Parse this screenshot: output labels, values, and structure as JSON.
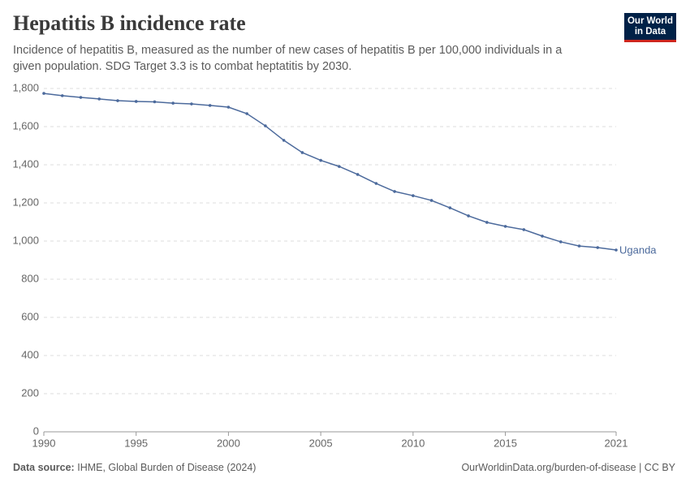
{
  "chart_data": {
    "type": "line",
    "title": "Hepatitis B incidence rate",
    "subtitle": "Incidence of hepatitis B, measured as the number of new cases of hepatitis B per 100,000 individuals in a given population. SDG Target 3.3 is to combat heptatitis by 2030.",
    "x": [
      1990,
      1991,
      1992,
      1993,
      1994,
      1995,
      1996,
      1997,
      1998,
      1999,
      2000,
      2001,
      2002,
      2003,
      2004,
      2005,
      2006,
      2007,
      2008,
      2009,
      2010,
      2011,
      2012,
      2013,
      2014,
      2015,
      2016,
      2017,
      2018,
      2019,
      2020,
      2021
    ],
    "series": [
      {
        "name": "Uganda",
        "color": "#4c6a9c",
        "values": [
          1774,
          1762,
          1753,
          1745,
          1736,
          1732,
          1730,
          1723,
          1719,
          1711,
          1702,
          1668,
          1604,
          1528,
          1464,
          1423,
          1391,
          1349,
          1302,
          1260,
          1238,
          1213,
          1174,
          1132,
          1098,
          1077,
          1060,
          1026,
          996,
          974,
          966,
          953
        ]
      }
    ],
    "xlim": [
      1990,
      2021
    ],
    "xticks": [
      1990,
      1995,
      2000,
      2005,
      2010,
      2015,
      2021
    ],
    "ylim": [
      0,
      1800
    ],
    "yticks": [
      0,
      200,
      400,
      600,
      800,
      {
        "value": 1000,
        "label": "1,000"
      },
      {
        "value": 1200,
        "label": "1,200"
      },
      {
        "value": 1400,
        "label": "1,400"
      },
      {
        "value": 1600,
        "label": "1,600"
      },
      {
        "value": 1800,
        "label": "1,800"
      }
    ],
    "grid": true
  },
  "logo": {
    "line1": "Our World",
    "line2": "in Data"
  },
  "footer": {
    "source_label": "Data source:",
    "source": "IHME, Global Burden of Disease (2024)",
    "license": "OurWorldinData.org/burden-of-disease | CC BY"
  }
}
